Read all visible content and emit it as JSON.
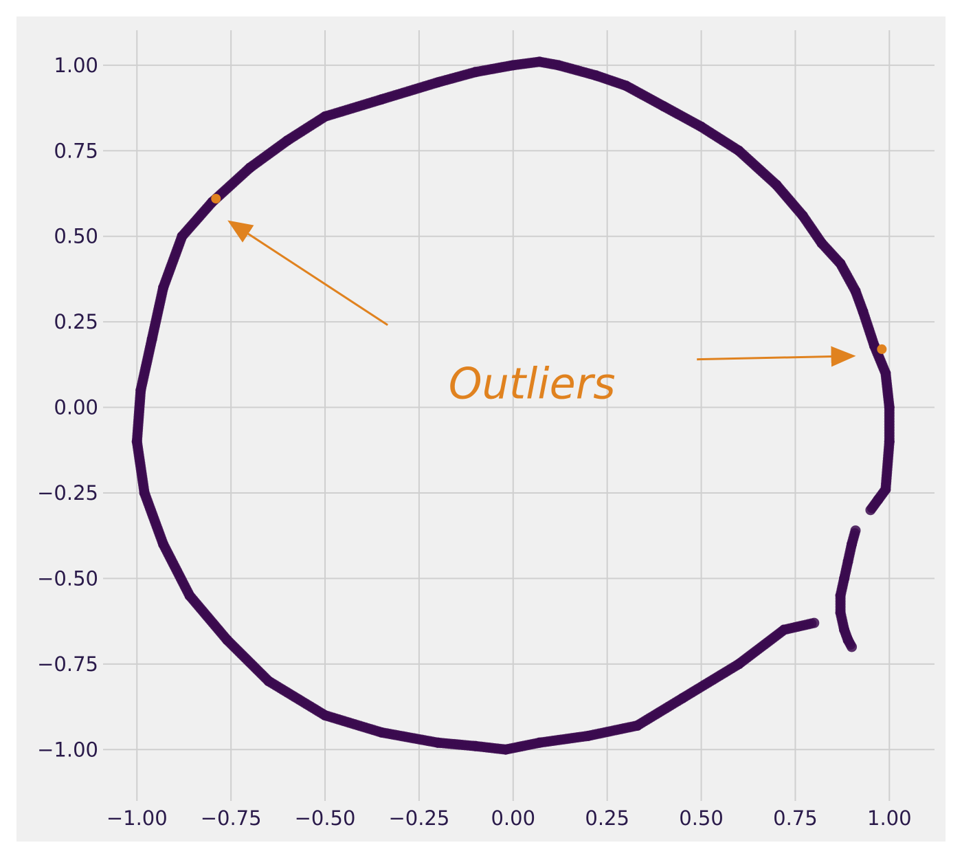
{
  "chart_data": {
    "type": "scatter",
    "title": "",
    "xlabel": "",
    "ylabel": "",
    "xlim": [
      -1.09,
      1.12
    ],
    "ylim": [
      -1.11,
      1.07
    ],
    "grid": true,
    "x_ticks": [
      -1.0,
      -0.75,
      -0.5,
      -0.25,
      0.0,
      0.25,
      0.5,
      0.75,
      1.0
    ],
    "x_tick_labels": [
      "−1.00",
      "−0.75",
      "−0.50",
      "−0.25",
      "0.00",
      "0.25",
      "0.50",
      "0.75",
      "1.00"
    ],
    "y_ticks": [
      1.0,
      0.75,
      0.5,
      0.25,
      0.0,
      -0.25,
      -0.5,
      -0.75,
      -1.0
    ],
    "y_tick_labels": [
      "1.00",
      "0.75",
      "0.50",
      "0.25",
      "0.00",
      "−0.25",
      "−0.50",
      "−0.75",
      "−1.00"
    ],
    "colors": {
      "inliers": "#3b0a4f",
      "outliers": "#e0821f",
      "plot_background": "#f0f0f0",
      "grid": "#cfcfcf"
    },
    "series": [
      {
        "role": "inliers",
        "x": [
          0.07,
          0.0,
          -0.1,
          -0.2,
          -0.35,
          -0.5,
          -0.6,
          -0.7,
          -0.8,
          -0.88,
          -0.93,
          -0.96,
          -0.99,
          -1.0,
          -0.98,
          -0.93,
          -0.86,
          -0.76,
          -0.65,
          -0.5,
          -0.35,
          -0.2,
          -0.1,
          -0.02,
          0.07,
          0.2,
          0.33,
          0.45,
          0.6,
          0.72,
          0.8
        ],
        "y": [
          1.01,
          1.0,
          0.98,
          0.95,
          0.9,
          0.85,
          0.78,
          0.7,
          0.6,
          0.5,
          0.35,
          0.2,
          0.05,
          -0.1,
          -0.25,
          -0.4,
          -0.55,
          -0.68,
          -0.8,
          -0.9,
          -0.95,
          -0.98,
          -0.99,
          -1.0,
          -0.98,
          -0.96,
          -0.93,
          -0.85,
          -0.75,
          -0.65,
          -0.63
        ]
      },
      {
        "role": "inliers",
        "x": [
          0.07,
          0.12,
          0.22,
          0.3,
          0.4,
          0.5,
          0.6,
          0.7,
          0.77,
          0.82,
          0.87,
          0.91,
          0.93,
          0.96,
          0.99,
          1.0,
          1.0,
          0.99,
          0.97,
          0.95
        ],
        "y": [
          1.01,
          1.0,
          0.97,
          0.94,
          0.88,
          0.82,
          0.75,
          0.65,
          0.56,
          0.48,
          0.42,
          0.34,
          0.28,
          0.18,
          0.1,
          0.0,
          -0.1,
          -0.24,
          -0.27,
          -0.3
        ]
      },
      {
        "role": "inliers",
        "x": [
          0.91,
          0.9,
          0.89,
          0.88,
          0.87,
          0.87,
          0.88,
          0.89,
          0.9
        ],
        "y": [
          -0.36,
          -0.4,
          -0.45,
          -0.5,
          -0.55,
          -0.6,
          -0.65,
          -0.68,
          -0.7
        ]
      },
      {
        "role": "outliers",
        "x": [
          -0.79,
          0.98
        ],
        "y": [
          0.61,
          0.17
        ]
      }
    ],
    "annotations": [
      {
        "text": "Outliers",
        "x": 0.05,
        "y": 0.07,
        "arrow_targets": [
          [
            -0.75,
            0.54
          ],
          [
            0.9,
            0.15
          ]
        ]
      }
    ]
  }
}
